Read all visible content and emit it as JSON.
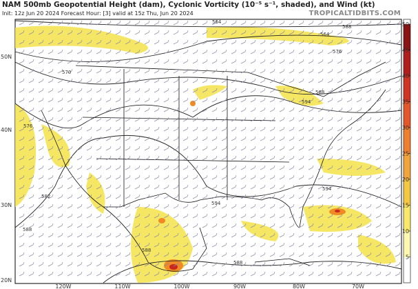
{
  "header": {
    "title": "NAM 500mb Geopotential Height (dam), Cyclonic Vorticity (10⁻⁵ s⁻¹, shaded), and Wind (kt)",
    "subtitle": "Init: 12z Jun 20 2024   Forecast Hour: [3]   valid at 15z Thu, Jun 20 2024",
    "watermark": "TROPICALTIDBITS.COM"
  },
  "map": {
    "lat_labels": [
      "50N",
      "40N",
      "30N",
      "20N"
    ],
    "lon_labels": [
      "120W",
      "110W",
      "100W",
      "90W",
      "80W",
      "70W"
    ],
    "contour_labels": [
      "564",
      "588",
      "564",
      "576",
      "570",
      "588",
      "594",
      "576",
      "582",
      "588",
      "594",
      "594",
      "588",
      "588"
    ]
  },
  "colorbar": {
    "lim": [
      0,
      50
    ],
    "ticks": [
      5,
      10,
      15,
      20,
      25,
      30,
      35,
      40,
      45,
      50
    ]
  }
}
